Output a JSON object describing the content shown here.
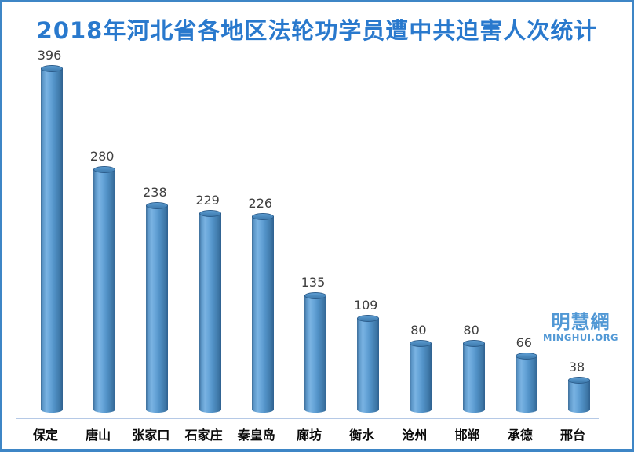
{
  "chart_data": {
    "type": "bar",
    "style": "3d-cylinder",
    "title": "2018年河北省各地区法轮功学员遭中共迫害人次统计",
    "categories": [
      "保定",
      "唐山",
      "张家口",
      "石家庄",
      "秦皇岛",
      "廊坊",
      "衡水",
      "沧州",
      "邯郸",
      "承德",
      "邢台"
    ],
    "values": [
      396,
      280,
      238,
      229,
      226,
      135,
      109,
      80,
      80,
      66,
      38
    ],
    "xlabel": "",
    "ylabel": "",
    "data_labels_shown": true,
    "legend_position": "none",
    "grid": "off",
    "y_axis_visible": false
  },
  "watermark": {
    "brand": "明慧網",
    "site": "MINGHUI.ORG"
  },
  "colors": {
    "title": "#2979cd",
    "bar_fill": "#5191c6",
    "bar_highlight": "#7ab3e2",
    "bar_edge": "#2f6190",
    "bar_cap": "#4a88bc",
    "value_label": "#3f3f3f",
    "category_label": "#0a0a0a",
    "axis_line": "#4d7ebf",
    "frame_border": "#3e86c6",
    "watermark": "#5198d5",
    "background": "#ffffff"
  }
}
